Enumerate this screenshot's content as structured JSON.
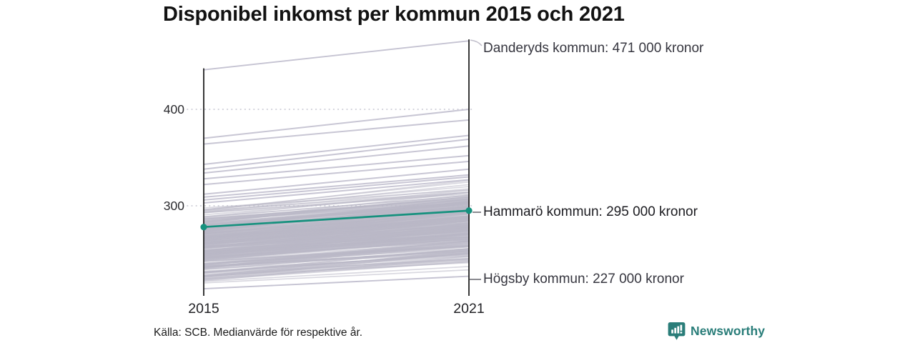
{
  "title": "Disponibel inkomst per kommun 2015 och 2021",
  "source_note": "Källa: SCB. Medianvärde för respektive år.",
  "brand": {
    "name": "Newsworthy",
    "icon": "newsworthy-bar-chart-bubble-icon",
    "color": "#2a7d79"
  },
  "colors": {
    "highlight_line": "#16917e",
    "background_line": "#c5c3d2",
    "axis": "#161616",
    "gridline": "#cbcbd5",
    "leader": "#4a4a55",
    "leader_light": "#c2c0cc"
  },
  "chart_data": {
    "type": "line",
    "subtype": "slopegraph",
    "title": "Disponibel inkomst per kommun 2015 och 2021",
    "x": [
      2015,
      2021
    ],
    "x_tick_labels": [
      "2015",
      "2021"
    ],
    "y_ticks": [
      400,
      300
    ],
    "y_tick_labels": [
      "400",
      "300"
    ],
    "ylim": [
      210,
      478
    ],
    "grid": "dotted horizontal at y ticks",
    "legend": "none",
    "series": [
      {
        "name": "Danderyds kommun",
        "values": [
          441,
          471
        ],
        "annotation": "Danderyds kommun: 471 000 kronor",
        "highlighted": false
      },
      {
        "name": "Hammarö kommun",
        "values": [
          278,
          295
        ],
        "annotation": "Hammarö kommun: 295 000 kronor",
        "highlighted": true
      },
      {
        "name": "Högsby kommun",
        "values": [
          214,
          227
        ],
        "annotation": "Högsby kommun: 227 000 kronor",
        "highlighted": false
      }
    ],
    "other_visible_lines": [
      [
        370,
        400
      ],
      [
        364,
        389
      ],
      [
        343,
        373
      ],
      [
        338,
        369
      ],
      [
        334,
        362
      ],
      [
        328,
        352
      ],
      [
        322,
        346
      ],
      [
        312,
        338
      ],
      [
        309,
        332
      ],
      [
        306,
        330
      ],
      [
        303,
        327
      ]
    ],
    "background": {
      "description": "Remaining Swedish municipalities drawn as unlabeled light gray slope lines between 2015 and 2021",
      "count": 300,
      "value_2015_range": [
        218,
        302
      ],
      "gain_range": [
        13,
        31
      ],
      "seed": 11
    }
  }
}
